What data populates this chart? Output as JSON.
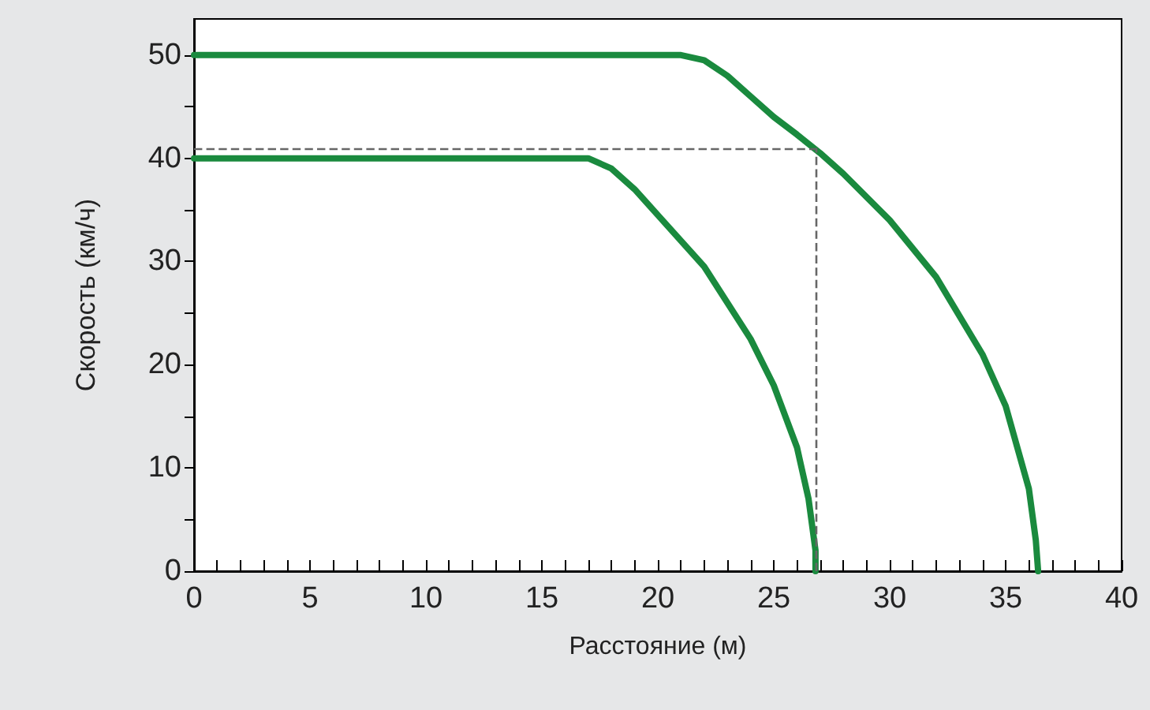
{
  "chart_data": {
    "type": "line",
    "xlabel": "Расстояние (м)",
    "ylabel": "Скорость (км/ч)",
    "xlim": [
      0,
      40
    ],
    "ylim": [
      0,
      53.5
    ],
    "xticks": [
      0,
      {
        "value": 1,
        "label": null
      },
      {
        "value": 2,
        "label": null
      },
      {
        "value": 3,
        "label": null
      },
      {
        "value": 4,
        "label": null
      },
      5,
      {
        "value": 6,
        "label": null
      },
      {
        "value": 7,
        "label": null
      },
      {
        "value": 8,
        "label": null
      },
      {
        "value": 9,
        "label": null
      },
      10,
      {
        "value": 11,
        "label": null
      },
      {
        "value": 12,
        "label": null
      },
      {
        "value": 13,
        "label": null
      },
      {
        "value": 14,
        "label": null
      },
      15,
      {
        "value": 16,
        "label": null
      },
      {
        "value": 17,
        "label": null
      },
      {
        "value": 18,
        "label": null
      },
      {
        "value": 19,
        "label": null
      },
      20,
      {
        "value": 21,
        "label": null
      },
      {
        "value": 22,
        "label": null
      },
      {
        "value": 23,
        "label": null
      },
      {
        "value": 24,
        "label": null
      },
      25,
      {
        "value": 26,
        "label": null
      },
      {
        "value": 27,
        "label": null
      },
      {
        "value": 28,
        "label": null
      },
      {
        "value": 29,
        "label": null
      },
      30,
      {
        "value": 31,
        "label": null
      },
      {
        "value": 32,
        "label": null
      },
      {
        "value": 33,
        "label": null
      },
      {
        "value": 34,
        "label": null
      },
      35,
      {
        "value": 36,
        "label": null
      },
      {
        "value": 37,
        "label": null
      },
      {
        "value": 38,
        "label": null
      },
      {
        "value": 39,
        "label": null
      },
      40
    ],
    "yticks": [
      0,
      {
        "value": 5,
        "label": null
      },
      10,
      {
        "value": 15,
        "label": null
      },
      20,
      {
        "value": 25,
        "label": null
      },
      30,
      {
        "value": 35,
        "label": null
      },
      40,
      {
        "value": 45,
        "label": null
      },
      50
    ],
    "grid": false,
    "marker": "none",
    "line_style": "solid",
    "series": [
      {
        "color": "#1a8a3e",
        "x": [
          0,
          21,
          22,
          23,
          24,
          25,
          26,
          27,
          28,
          30,
          32,
          34,
          35,
          36,
          36.3,
          36.4
        ],
        "values": [
          50,
          50,
          49.5,
          48,
          46,
          44,
          42.3,
          40.5,
          38.5,
          34,
          28.5,
          21,
          16,
          8,
          3,
          0
        ]
      },
      {
        "color": "#1a8a3e",
        "x": [
          0,
          17,
          18,
          19,
          20,
          22,
          24,
          25,
          26,
          26.5,
          26.8,
          26.8
        ],
        "values": [
          40,
          40,
          39,
          37,
          34.5,
          29.5,
          22.5,
          18,
          12,
          7,
          2,
          0
        ]
      }
    ],
    "ref_lines": [
      {
        "axis": "x",
        "value": 26.8,
        "color": "#666666",
        "line_style": "dashed"
      },
      {
        "axis": "y",
        "value": 41,
        "color": "#666666",
        "line_style": "dashed"
      }
    ]
  }
}
